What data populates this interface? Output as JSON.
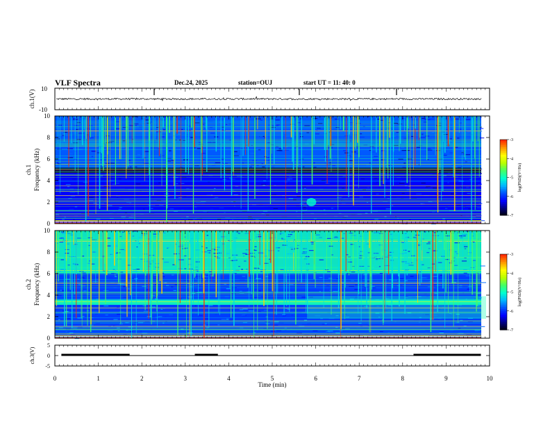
{
  "header": {
    "title": "VLF Spectra",
    "date": "Dec.24, 2025",
    "station": "station=OUJ",
    "start": "start  UT =  11: 40: 0"
  },
  "colors": {
    "waveform": "#000000",
    "colormap": [
      "#000000",
      "#00007a",
      "#0000ff",
      "#0050ff",
      "#00b4ff",
      "#00ffd0",
      "#44ff66",
      "#b8ff00",
      "#ffff00",
      "#ff9a00",
      "#ff2a00",
      "#d60000",
      "#ffffff"
    ]
  },
  "chart_data": [
    {
      "type": "line",
      "name": "ch1-waveform",
      "ylabel": "ch.1(V)",
      "xlim": [
        0,
        10
      ],
      "ylim": [
        -10,
        10
      ],
      "yticks": [
        "10",
        "-10"
      ],
      "mean": 0,
      "amplitude": 0.8
    },
    {
      "type": "heatmap",
      "name": "ch1-spectrogram",
      "ylabel": "ch.1\nFrequency (kHz)",
      "xlim": [
        0,
        10
      ],
      "ylim": [
        0,
        10
      ],
      "yticks": [
        "0",
        "2",
        "4",
        "6",
        "8",
        "10"
      ],
      "colorbar": {
        "label": "log(PSD)(V²/Hz)",
        "ticks": [
          "-3",
          "-4",
          "-5",
          "-6",
          "-7"
        ],
        "range": [
          -7,
          -3
        ]
      },
      "background_level": -6.2,
      "upper_band": {
        "range_khz": [
          5.2,
          10
        ],
        "level": -5.7
      },
      "dark_band": {
        "range_khz": [
          4.7,
          5.2
        ],
        "level": -6.9
      },
      "lines_khz": [
        0.3,
        0.5,
        0.7,
        0.9,
        1.2,
        1.8,
        2.1,
        2.3,
        2.6,
        3.0,
        3.2,
        3.5,
        4.5,
        4.8,
        5.0,
        5.5,
        7.2,
        8.6
      ],
      "spot": {
        "t_min": 5.9,
        "f_khz": 2.0,
        "level": -5.0
      },
      "burst_count": 170
    },
    {
      "type": "heatmap",
      "name": "ch2-spectrogram",
      "ylabel": "ch.2\nFrequency (kHz)",
      "xlim": [
        0,
        10
      ],
      "ylim": [
        0,
        10
      ],
      "yticks": [
        "0",
        "2",
        "4",
        "6",
        "8",
        "10"
      ],
      "colorbar": {
        "label": "log(PSD)(V²/Hz)",
        "ticks": [
          "-3",
          "-4",
          "-5",
          "-6",
          "-7"
        ],
        "range": [
          -7,
          -3
        ]
      },
      "background_level": -5.9,
      "upper_band": {
        "range_khz": [
          6,
          10
        ],
        "level": -4.9
      },
      "band_khz": [
        3.1,
        3.6
      ],
      "band_level": -4.9,
      "lines_khz": [
        0.4,
        0.8,
        1.1,
        1.6,
        2.4,
        2.8,
        3.4,
        4.2,
        5.1,
        6.3,
        7.5,
        9.0
      ],
      "burst_count": 230
    },
    {
      "type": "line",
      "name": "ch3-trigger",
      "ylabel": "ch.3(V)",
      "xlabel": "Time  (min)",
      "xlim": [
        0,
        10
      ],
      "ylim": [
        -5,
        5
      ],
      "yticks": [
        "5",
        "0",
        "-5"
      ],
      "xticks": [
        "0",
        "1",
        "2",
        "3",
        "4",
        "5",
        "6",
        "7",
        "8",
        "9",
        "10"
      ],
      "baseline": 0,
      "pulses_min": [
        [
          0.15,
          1.72
        ],
        [
          3.22,
          3.75
        ],
        [
          8.25,
          9.8
        ]
      ]
    }
  ]
}
